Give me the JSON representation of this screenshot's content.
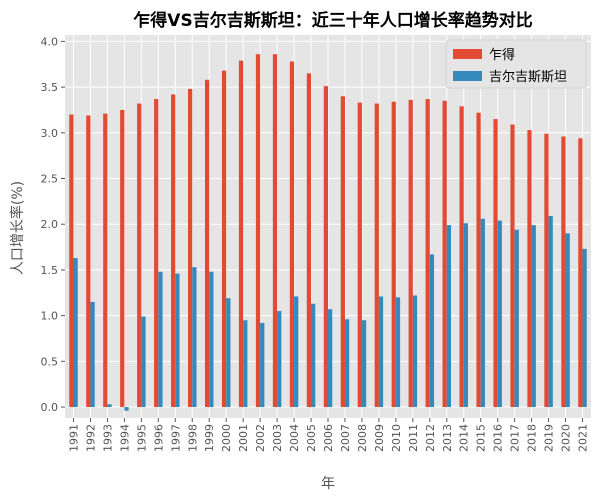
{
  "chart_data": {
    "type": "bar",
    "title": "乍得VS吉尔吉斯斯坦：近三十年人口增长率趋势对比",
    "xlabel": "年",
    "ylabel": "人口增长率(%)",
    "ylim": [
      -0.12,
      4.07
    ],
    "yticks": [
      "0.0",
      "0.5",
      "1.0",
      "1.5",
      "2.0",
      "2.5",
      "3.0",
      "3.5",
      "4.0"
    ],
    "grid": true,
    "legend_position": "top-right",
    "categories": [
      "1991",
      "1992",
      "1993",
      "1994",
      "1995",
      "1996",
      "1997",
      "1998",
      "1999",
      "2000",
      "2001",
      "2002",
      "2003",
      "2004",
      "2005",
      "2006",
      "2007",
      "2008",
      "2009",
      "2010",
      "2011",
      "2012",
      "2013",
      "2014",
      "2015",
      "2016",
      "2017",
      "2018",
      "2019",
      "2020",
      "2021"
    ],
    "series": [
      {
        "name": "乍得",
        "color": "#E24A33",
        "values": [
          3.2,
          3.19,
          3.21,
          3.25,
          3.32,
          3.37,
          3.42,
          3.48,
          3.58,
          3.68,
          3.79,
          3.86,
          3.86,
          3.78,
          3.65,
          3.51,
          3.4,
          3.33,
          3.32,
          3.34,
          3.36,
          3.37,
          3.35,
          3.29,
          3.22,
          3.15,
          3.09,
          3.03,
          2.99,
          2.96,
          2.94
        ]
      },
      {
        "name": "吉尔吉斯斯坦",
        "color": "#348ABD",
        "values": [
          1.63,
          1.15,
          0.03,
          -0.04,
          0.99,
          1.48,
          1.46,
          1.53,
          1.48,
          1.19,
          0.95,
          0.92,
          1.05,
          1.21,
          1.13,
          1.07,
          0.96,
          0.95,
          1.21,
          1.2,
          1.22,
          1.67,
          1.99,
          2.01,
          2.06,
          2.04,
          1.94,
          1.99,
          2.09,
          1.9,
          1.73
        ]
      }
    ]
  }
}
